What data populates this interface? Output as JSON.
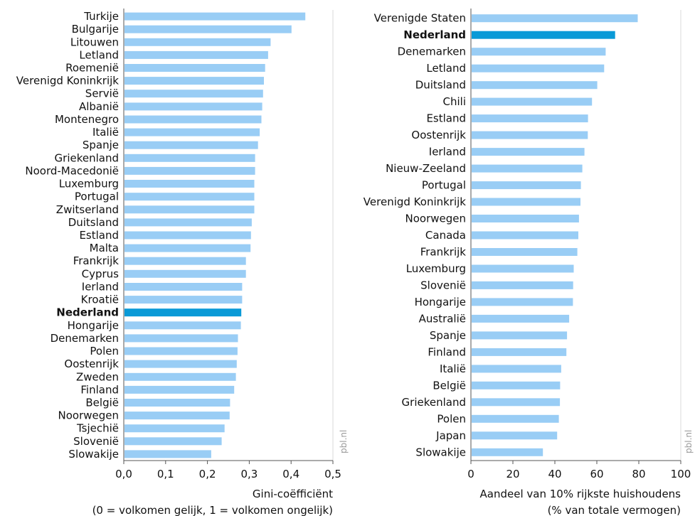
{
  "credit": "pbl.nl",
  "colors": {
    "bar": "#99cdf5",
    "highlight": "#0a9ad7",
    "axis": "#555555",
    "grid": "#d9d9d9"
  },
  "chart_data": [
    {
      "type": "bar",
      "orientation": "horizontal",
      "categories": [
        "Turkije",
        "Bulgarije",
        "Litouwen",
        "Letland",
        "Roemenië",
        "Verenigd Koninkrijk",
        "Servië",
        "Albanië",
        "Montenegro",
        "Italië",
        "Spanje",
        "Griekenland",
        "Noord-Macedonië",
        "Luxemburg",
        "Portugal",
        "Zwitserland",
        "Duitsland",
        "Estland",
        "Malta",
        "Frankrijk",
        "Cyprus",
        "Ierland",
        "Kroatië",
        "Nederland",
        "Hongarije",
        "Denemarken",
        "Polen",
        "Oostenrijk",
        "Zweden",
        "Finland",
        "België",
        "Noorwegen",
        "Tsjechië",
        "Slovenië",
        "Slowakije"
      ],
      "values": [
        0.434,
        0.401,
        0.351,
        0.345,
        0.338,
        0.335,
        0.333,
        0.331,
        0.329,
        0.325,
        0.321,
        0.314,
        0.314,
        0.312,
        0.312,
        0.312,
        0.306,
        0.304,
        0.303,
        0.292,
        0.292,
        0.283,
        0.283,
        0.281,
        0.28,
        0.273,
        0.272,
        0.27,
        0.268,
        0.264,
        0.254,
        0.253,
        0.241,
        0.234,
        0.209
      ],
      "highlight": "Nederland",
      "xlabel": "Gini-coëfficiënt",
      "xlabel_line2": "(0 = volkomen gelijk, 1 = volkomen ongelijk)",
      "xlim": [
        0,
        0.5
      ],
      "xticks": [
        0,
        0.1,
        0.2,
        0.3,
        0.4,
        0.5
      ],
      "xtick_labels": [
        "0,0",
        "0,1",
        "0,2",
        "0,3",
        "0,4",
        "0,5"
      ]
    },
    {
      "type": "bar",
      "orientation": "horizontal",
      "categories": [
        "Verenigde Staten",
        "Nederland",
        "Denemarken",
        "Letland",
        "Duitsland",
        "Chili",
        "Estland",
        "Oostenrijk",
        "Ierland",
        "Nieuw-Zeeland",
        "Portugal",
        "Verenigd Koninkrijk",
        "Noorwegen",
        "Canada",
        "Frankrijk",
        "Luxemburg",
        "Slovenië",
        "Hongarije",
        "Australië",
        "Spanje",
        "Finland",
        "Italië",
        "België",
        "Griekenland",
        "Polen",
        "Japan",
        "Slowakije"
      ],
      "values": [
        79.5,
        68.7,
        64.2,
        63.5,
        60.2,
        57.7,
        55.8,
        55.7,
        54.1,
        53.1,
        52.4,
        52.2,
        51.5,
        51.2,
        50.7,
        49.0,
        48.7,
        48.6,
        46.8,
        45.8,
        45.5,
        43.0,
        42.5,
        42.4,
        41.9,
        41.1,
        34.3
      ],
      "highlight": "Nederland",
      "xlabel": "Aandeel van 10% rijkste huishoudens",
      "xlabel_line2": "(% van totale vermogen)",
      "xlim": [
        0,
        100
      ],
      "xticks": [
        0,
        20,
        40,
        60,
        80,
        100
      ],
      "xtick_labels": [
        "0",
        "20",
        "40",
        "60",
        "80",
        "100"
      ]
    }
  ]
}
